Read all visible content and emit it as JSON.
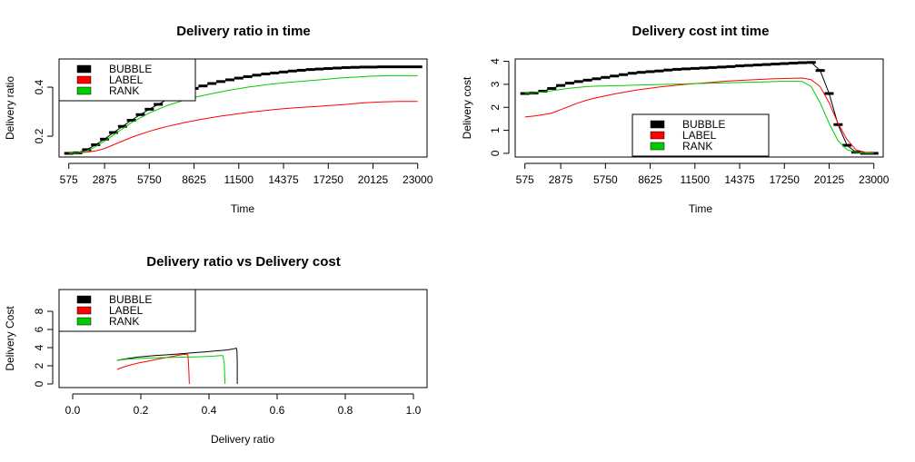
{
  "chart_data": [
    {
      "type": "line",
      "title": "Delivery ratio in time",
      "xlabel": "Time",
      "ylabel": "Delivery ratio",
      "x_tick_labels": [
        "575",
        "2875",
        "5750",
        "8625",
        "11500",
        "14375",
        "17250",
        "20125",
        "23000"
      ],
      "y_tick_labels": [
        "0.2",
        "0.4"
      ],
      "xlim": [
        -50,
        23600
      ],
      "ylim": [
        0.115,
        0.515
      ],
      "x": [
        575,
        1150,
        1725,
        2300,
        2875,
        3450,
        4025,
        4600,
        5175,
        5750,
        6325,
        6900,
        7475,
        8050,
        8625,
        9200,
        9775,
        10350,
        10925,
        11500,
        12075,
        12650,
        13225,
        13800,
        14375,
        14950,
        15525,
        16100,
        16675,
        17250,
        17825,
        18400,
        18975,
        19550,
        20125,
        20700,
        21275,
        21850,
        22425,
        23000
      ],
      "series": [
        {
          "name": "BUBBLE",
          "color": "#000000",
          "markers": true,
          "values": [
            0.13,
            0.132,
            0.145,
            0.165,
            0.188,
            0.215,
            0.24,
            0.265,
            0.288,
            0.31,
            0.33,
            0.35,
            0.367,
            0.382,
            0.395,
            0.405,
            0.415,
            0.423,
            0.43,
            0.437,
            0.443,
            0.449,
            0.454,
            0.458,
            0.462,
            0.466,
            0.469,
            0.472,
            0.474,
            0.476,
            0.478,
            0.48,
            0.481,
            0.482,
            0.482,
            0.483,
            0.483,
            0.483,
            0.483,
            0.483
          ]
        },
        {
          "name": "LABEL",
          "color": "#ff0000",
          "markers": false,
          "values": [
            0.13,
            0.132,
            0.135,
            0.14,
            0.15,
            0.165,
            0.18,
            0.195,
            0.208,
            0.22,
            0.23,
            0.24,
            0.248,
            0.256,
            0.263,
            0.27,
            0.276,
            0.282,
            0.287,
            0.292,
            0.297,
            0.301,
            0.305,
            0.309,
            0.312,
            0.315,
            0.318,
            0.32,
            0.322,
            0.325,
            0.327,
            0.33,
            0.333,
            0.336,
            0.338,
            0.34,
            0.341,
            0.342,
            0.342,
            0.342
          ]
        },
        {
          "name": "RANK",
          "color": "#00cc00",
          "markers": false,
          "values": [
            0.13,
            0.132,
            0.14,
            0.158,
            0.18,
            0.205,
            0.23,
            0.255,
            0.275,
            0.295,
            0.31,
            0.325,
            0.337,
            0.348,
            0.358,
            0.366,
            0.374,
            0.381,
            0.388,
            0.394,
            0.4,
            0.405,
            0.41,
            0.414,
            0.418,
            0.421,
            0.424,
            0.427,
            0.43,
            0.433,
            0.436,
            0.439,
            0.441,
            0.443,
            0.445,
            0.446,
            0.447,
            0.447,
            0.447,
            0.447
          ]
        }
      ],
      "legend": {
        "placement": "top-left",
        "entries": [
          "BUBBLE",
          "LABEL",
          "RANK"
        ]
      }
    },
    {
      "type": "line",
      "title": "Delivery cost int time",
      "xlabel": "Time",
      "ylabel": "Delivery cost",
      "x_tick_labels": [
        "575",
        "2875",
        "5750",
        "8625",
        "11500",
        "14375",
        "17250",
        "20125",
        "23000"
      ],
      "y_tick_labels": [
        "0",
        "1",
        "2",
        "3",
        "4"
      ],
      "xlim": [
        -50,
        23600
      ],
      "ylim": [
        -0.16,
        4.1
      ],
      "x": [
        575,
        1150,
        1725,
        2300,
        2875,
        3450,
        4025,
        4600,
        5175,
        5750,
        6325,
        6900,
        7475,
        8050,
        8625,
        9200,
        9775,
        10350,
        10925,
        11500,
        12075,
        12650,
        13225,
        13800,
        14375,
        14950,
        15525,
        16100,
        16675,
        17250,
        17825,
        18400,
        18975,
        19550,
        20125,
        20700,
        21275,
        21850,
        22425,
        23000
      ],
      "series": [
        {
          "name": "BUBBLE",
          "color": "#000000",
          "markers": true,
          "values": [
            2.6,
            2.62,
            2.7,
            2.82,
            2.95,
            3.05,
            3.12,
            3.18,
            3.24,
            3.3,
            3.36,
            3.42,
            3.48,
            3.52,
            3.55,
            3.58,
            3.62,
            3.65,
            3.67,
            3.69,
            3.71,
            3.73,
            3.75,
            3.77,
            3.8,
            3.82,
            3.84,
            3.86,
            3.88,
            3.9,
            3.92,
            3.94,
            3.95,
            3.6,
            2.6,
            1.25,
            0.35,
            0.05,
            0.0,
            0.0
          ]
        },
        {
          "name": "LABEL",
          "color": "#ff0000",
          "markers": false,
          "values": [
            1.58,
            1.62,
            1.68,
            1.75,
            1.9,
            2.05,
            2.2,
            2.32,
            2.42,
            2.5,
            2.58,
            2.65,
            2.72,
            2.78,
            2.83,
            2.88,
            2.92,
            2.96,
            3.0,
            3.03,
            3.06,
            3.09,
            3.12,
            3.15,
            3.17,
            3.19,
            3.21,
            3.23,
            3.24,
            3.25,
            3.26,
            3.27,
            3.2,
            2.9,
            2.2,
            1.3,
            0.6,
            0.15,
            0.05,
            0.0
          ]
        },
        {
          "name": "RANK",
          "color": "#00cc00",
          "markers": false,
          "values": [
            2.6,
            2.63,
            2.67,
            2.72,
            2.78,
            2.83,
            2.87,
            2.9,
            2.92,
            2.93,
            2.94,
            2.95,
            2.96,
            2.97,
            2.98,
            2.99,
            3.0,
            3.01,
            3.02,
            3.03,
            3.04,
            3.05,
            3.06,
            3.07,
            3.08,
            3.09,
            3.1,
            3.11,
            3.12,
            3.13,
            3.13,
            3.12,
            2.9,
            2.2,
            1.3,
            0.55,
            0.15,
            0.05,
            0.0,
            0.0
          ]
        }
      ],
      "legend": {
        "placement": "bottom-center",
        "entries": [
          "BUBBLE",
          "LABEL",
          "RANK"
        ]
      }
    },
    {
      "type": "line",
      "title": "Delivery ratio vs Delivery cost",
      "xlabel": "Delivery ratio",
      "ylabel": "Delivery Cost",
      "x_tick_labels": [
        "0.0",
        "0.2",
        "0.4",
        "0.6",
        "0.8",
        "1.0"
      ],
      "y_tick_labels": [
        "0",
        "2",
        "4",
        "6",
        "8"
      ],
      "xlim": [
        -0.04,
        1.04
      ],
      "ylim": [
        -0.4,
        10.4
      ],
      "series": [
        {
          "name": "BUBBLE",
          "color": "#000000",
          "x": [
            0.13,
            0.145,
            0.188,
            0.24,
            0.288,
            0.33,
            0.367,
            0.395,
            0.415,
            0.437,
            0.454,
            0.466,
            0.474,
            0.48,
            0.482,
            0.483,
            0.483,
            0.483,
            0.483
          ],
          "y": [
            2.6,
            2.7,
            2.95,
            3.12,
            3.24,
            3.36,
            3.48,
            3.55,
            3.62,
            3.69,
            3.75,
            3.82,
            3.88,
            3.95,
            3.6,
            2.6,
            1.25,
            0.35,
            0.0
          ]
        },
        {
          "name": "LABEL",
          "color": "#ff0000",
          "x": [
            0.13,
            0.14,
            0.165,
            0.195,
            0.22,
            0.248,
            0.27,
            0.292,
            0.312,
            0.325,
            0.333,
            0.338,
            0.34,
            0.341,
            0.342,
            0.342
          ],
          "y": [
            1.58,
            1.75,
            2.05,
            2.32,
            2.5,
            2.72,
            2.88,
            3.03,
            3.17,
            3.25,
            3.27,
            3.2,
            2.2,
            1.3,
            0.15,
            0.0
          ]
        },
        {
          "name": "RANK",
          "color": "#00cc00",
          "x": [
            0.13,
            0.158,
            0.205,
            0.255,
            0.295,
            0.337,
            0.366,
            0.394,
            0.418,
            0.433,
            0.441,
            0.445,
            0.446,
            0.447,
            0.447
          ],
          "y": [
            2.6,
            2.72,
            2.83,
            2.9,
            2.93,
            2.96,
            2.99,
            3.03,
            3.08,
            3.13,
            3.12,
            2.2,
            1.3,
            0.15,
            0.0
          ]
        }
      ],
      "legend": {
        "placement": "top-left",
        "entries": [
          "BUBBLE",
          "LABEL",
          "RANK"
        ]
      }
    }
  ]
}
